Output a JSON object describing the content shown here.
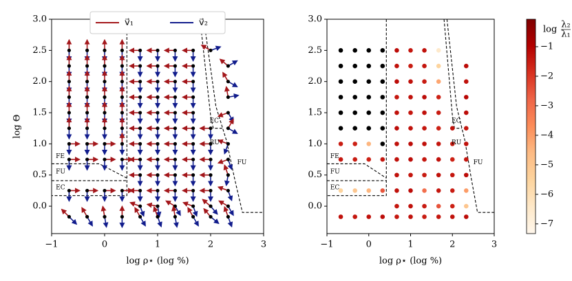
{
  "chart_data": [
    {
      "type": "quiver",
      "xlabel": "log ρ⋆ (log %)",
      "ylabel": "log Θ",
      "xlim": [
        -1,
        3
      ],
      "ylim": [
        -0.44,
        3.0
      ],
      "xticks": [
        {
          "value": -1,
          "label": "−1"
        },
        0,
        1,
        2,
        3
      ],
      "yticks": [
        {
          "value": 0,
          "label": "0.0"
        },
        0.5,
        {
          "value": 1,
          "label": "1.0"
        },
        1.5,
        {
          "value": 2,
          "label": "2.0"
        },
        2.5,
        {
          "value": 3,
          "label": "3.0"
        }
      ],
      "legend": "upper center",
      "series": [
        {
          "name": "v⃗₁",
          "color": "#a3161a"
        },
        {
          "name": "v⃗₂",
          "color": "#111c8c"
        }
      ],
      "annotations": [
        {
          "text": "FE",
          "color": "#3a3ad6"
        },
        {
          "text": "FU",
          "color": "#000000"
        },
        {
          "text": "EC",
          "color": "#1f8a1f"
        },
        {
          "text": "EC",
          "color": "#1f8a1f"
        },
        {
          "text": "RU",
          "color": "#d42020"
        },
        {
          "text": "FU",
          "color": "#000000"
        }
      ],
      "boundaries": [
        {
          "x": [
            0.42,
            0.42,
            -1
          ],
          "y": [
            3.0,
            0.17,
            0.17
          ]
        },
        {
          "x": [
            -1,
            -0.1,
            0.42
          ],
          "y": [
            0.68,
            0.68,
            0.45
          ]
        },
        {
          "x": [
            -1,
            0.42
          ],
          "y": [
            0.41,
            0.41
          ]
        },
        {
          "x": [
            1.8,
            2.0,
            2.05,
            2.22
          ],
          "y": [
            3.0,
            1.45,
            1.25,
            1.25
          ]
        },
        {
          "x": [
            1.87,
            2.1,
            2.3,
            2.45,
            2.6,
            3.0
          ],
          "y": [
            3.0,
            1.6,
            1.05,
            0.45,
            -0.1,
            -0.1
          ]
        }
      ],
      "rows": [
        {
          "y": 2.5,
          "x": [
            -0.67,
            -0.33,
            0,
            0.33,
            0.67,
            1,
            1.33,
            1.67,
            2
          ],
          "v1_angle": [
            90,
            90,
            90,
            90,
            180,
            180,
            180,
            180,
            150
          ],
          "v2_angle": [
            -90,
            -90,
            -90,
            -90,
            -90,
            -90,
            -90,
            -90,
            20
          ]
        },
        {
          "y": 2.25,
          "x": [
            -0.67,
            -0.33,
            0,
            0.33,
            0.67,
            1,
            1.33,
            1.67,
            2.33
          ],
          "v1_angle": [
            90,
            90,
            90,
            90,
            180,
            180,
            180,
            180,
            140
          ],
          "v2_angle": [
            -90,
            -90,
            -90,
            -90,
            -90,
            -90,
            -90,
            -90,
            30
          ]
        },
        {
          "y": 2.0,
          "x": [
            -0.67,
            -0.33,
            0,
            0.33,
            0.67,
            1,
            1.33,
            1.67,
            2.33
          ],
          "v1_angle": [
            90,
            90,
            90,
            90,
            180,
            180,
            180,
            180,
            120
          ],
          "v2_angle": [
            -90,
            -90,
            -90,
            -90,
            -90,
            -90,
            -90,
            -90,
            -30
          ]
        },
        {
          "y": 1.75,
          "x": [
            -0.67,
            -0.33,
            0,
            0.33,
            0.67,
            1,
            1.33,
            1.67,
            2.33
          ],
          "v1_angle": [
            90,
            90,
            90,
            90,
            180,
            180,
            180,
            180,
            100
          ],
          "v2_angle": [
            -90,
            -90,
            -90,
            -90,
            -90,
            -90,
            -90,
            -90,
            10
          ]
        },
        {
          "y": 1.5,
          "x": [
            -0.67,
            -0.33,
            0,
            0.33,
            0.67,
            1,
            1.33,
            1.67,
            2.33
          ],
          "v1_angle": [
            90,
            90,
            90,
            90,
            180,
            180,
            180,
            180,
            200
          ],
          "v2_angle": [
            -90,
            -90,
            -90,
            -90,
            -90,
            -90,
            -90,
            -90,
            -60
          ]
        },
        {
          "y": 1.25,
          "x": [
            -0.67,
            -0.33,
            0,
            0.33,
            0.67,
            1,
            1.33,
            1.67,
            2,
            2.33
          ],
          "v1_angle": [
            90,
            90,
            90,
            90,
            180,
            180,
            180,
            180,
            180,
            60
          ],
          "v2_angle": [
            -90,
            -90,
            -90,
            -90,
            -90,
            -90,
            -90,
            -90,
            -90,
            -30
          ]
        },
        {
          "y": 1.0,
          "x": [
            -0.67,
            -0.33,
            0,
            0.33,
            0.67,
            1,
            1.33,
            1.67,
            2,
            2.33
          ],
          "v1_angle": [
            0,
            0,
            0,
            90,
            180,
            180,
            180,
            180,
            180,
            160
          ],
          "v2_angle": [
            -90,
            -90,
            -90,
            -90,
            -90,
            -90,
            -90,
            -90,
            -90,
            -110
          ]
        },
        {
          "y": 0.75,
          "x": [
            -0.67,
            -0.33,
            0,
            0.33,
            0.67,
            1,
            1.33,
            1.67,
            2,
            2.33
          ],
          "v1_angle": [
            0,
            0,
            0,
            0,
            180,
            180,
            180,
            180,
            180,
            200
          ],
          "v2_angle": [
            -90,
            -90,
            -90,
            -90,
            -90,
            -90,
            -90,
            -90,
            -90,
            -70
          ]
        },
        {
          "y": 0.5,
          "x": [
            0.67,
            1,
            1.33,
            1.67,
            2,
            2.33
          ],
          "v1_angle": [
            180,
            180,
            180,
            180,
            180,
            110
          ],
          "v2_angle": [
            -90,
            -90,
            -90,
            -90,
            -90,
            -100
          ]
        },
        {
          "y": 0.25,
          "x": [
            -0.67,
            -0.33,
            0,
            0.33,
            0.67,
            1,
            1.33,
            1.67,
            2,
            2.33
          ],
          "v1_angle": [
            0,
            0,
            0,
            0,
            180,
            180,
            180,
            180,
            180,
            160
          ],
          "v2_angle": [
            -90,
            -90,
            -90,
            -90,
            -90,
            -90,
            -90,
            -90,
            -90,
            -70
          ]
        },
        {
          "y": 0.0,
          "x": [
            0.67,
            1,
            1.33,
            1.67,
            2,
            2.33
          ],
          "v1_angle": [
            160,
            170,
            150,
            160,
            140,
            150
          ],
          "v2_angle": [
            -70,
            -80,
            -60,
            -70,
            -50,
            -60
          ]
        },
        {
          "y": -0.17,
          "x": [
            -0.67,
            -0.33,
            0,
            0.33,
            0.67,
            1,
            1.33,
            1.67,
            2,
            2.33
          ],
          "v1_angle": [
            135,
            120,
            100,
            90,
            120,
            110,
            100,
            120,
            130,
            110
          ],
          "v2_angle": [
            -45,
            -60,
            -80,
            -90,
            -60,
            -70,
            -80,
            -60,
            -40,
            -70
          ]
        }
      ]
    },
    {
      "type": "scatter",
      "xlabel": "log ρ⋆ (log %)",
      "xlim": [
        -1,
        3
      ],
      "ylim": [
        -0.44,
        3.0
      ],
      "xticks": [
        {
          "value": -1,
          "label": "−1"
        },
        0,
        1,
        2,
        3
      ],
      "yticks": [
        {
          "value": 0,
          "label": "0.0"
        },
        0.5,
        {
          "value": 1,
          "label": "1.0"
        },
        1.5,
        {
          "value": 2,
          "label": "2.0"
        },
        2.5,
        {
          "value": 3,
          "label": "3.0"
        }
      ],
      "missing_color": "#000000",
      "colormap": [
        "#fff7ec",
        "#fee8c8",
        "#fdd49e",
        "#fdbb84",
        "#fc8d59",
        "#ef6548",
        "#d7301f",
        "#b30000",
        "#7f0000"
      ],
      "colorbar": {
        "clim": [
          -7.33,
          -0.07
        ],
        "ticks": [
          {
            "value": -1,
            "label": "−1"
          },
          {
            "value": -2,
            "label": "−2"
          },
          {
            "value": -3,
            "label": "−3"
          },
          {
            "value": -4,
            "label": "−4"
          },
          {
            "value": -5,
            "label": "−5"
          },
          {
            "value": -6,
            "label": "−6"
          },
          {
            "value": -7,
            "label": "−7"
          }
        ],
        "label": {
          "prefix": "log",
          "numerator": "λ₂",
          "denominator": "λ₁"
        }
      },
      "annotations": [
        {
          "text": "FE",
          "color": "#3a3ad6"
        },
        {
          "text": "FU",
          "color": "#000000"
        },
        {
          "text": "EC",
          "color": "#1f8a1f"
        },
        {
          "text": "EC",
          "color": "#1f8a1f"
        },
        {
          "text": "RU",
          "color": "#d42020"
        },
        {
          "text": "FU",
          "color": "#000000"
        }
      ],
      "boundaries": [
        {
          "x": [
            0.42,
            0.42,
            -1
          ],
          "y": [
            3.0,
            0.17,
            0.17
          ]
        },
        {
          "x": [
            -1,
            -0.1,
            0.42
          ],
          "y": [
            0.68,
            0.68,
            0.45
          ]
        },
        {
          "x": [
            -1,
            0.42
          ],
          "y": [
            0.41,
            0.41
          ]
        },
        {
          "x": [
            1.8,
            2.0,
            2.05,
            2.22
          ],
          "y": [
            3.0,
            1.45,
            1.25,
            1.25
          ]
        },
        {
          "x": [
            1.87,
            2.1,
            2.3,
            2.45,
            2.6,
            3.0
          ],
          "y": [
            3.0,
            1.6,
            1.05,
            0.45,
            -0.1,
            -0.1
          ]
        }
      ],
      "rows": [
        {
          "y": 2.5,
          "x": [
            -0.67,
            -0.33,
            0,
            0.33,
            0.67,
            1,
            1.33,
            1.67
          ],
          "values": [
            null,
            null,
            null,
            null,
            -1.2,
            -1.4,
            -1.3,
            -6.5
          ]
        },
        {
          "y": 2.25,
          "x": [
            -0.67,
            -0.33,
            0,
            0.33,
            0.67,
            1,
            1.33,
            1.67,
            2.33
          ],
          "values": [
            null,
            null,
            null,
            null,
            -1.3,
            -1.5,
            -1.4,
            -5.5,
            -1.2
          ]
        },
        {
          "y": 2.0,
          "x": [
            -0.67,
            -0.33,
            0,
            0.33,
            0.67,
            1,
            1.33,
            1.67,
            2.33
          ],
          "values": [
            null,
            null,
            null,
            null,
            -1.2,
            -1.3,
            -1.5,
            -4.2,
            -1.3
          ]
        },
        {
          "y": 1.75,
          "x": [
            -0.67,
            -0.33,
            0,
            0.33,
            0.67,
            1,
            1.33,
            1.67,
            2.33
          ],
          "values": [
            null,
            null,
            null,
            null,
            -1.4,
            -1.3,
            -1.2,
            -1.6,
            -1.1
          ]
        },
        {
          "y": 1.5,
          "x": [
            -0.67,
            -0.33,
            0,
            0.33,
            0.67,
            1,
            1.33,
            1.67,
            2.33
          ],
          "values": [
            null,
            null,
            null,
            null,
            -1.3,
            -1.4,
            -1.3,
            -1.5,
            -1.2
          ]
        },
        {
          "y": 1.25,
          "x": [
            -0.67,
            -0.33,
            0,
            0.33,
            0.67,
            1,
            1.33,
            1.67,
            2,
            2.33
          ],
          "values": [
            null,
            null,
            null,
            null,
            -1.2,
            -1.3,
            -1.4,
            -1.6,
            -1.3,
            -1.4
          ]
        },
        {
          "y": 1.0,
          "x": [
            -0.67,
            -0.33,
            0,
            0.33,
            0.67,
            1,
            1.33,
            1.67,
            2,
            2.33
          ],
          "values": [
            -1.5,
            -1.6,
            -4.5,
            null,
            -1.3,
            -1.2,
            -1.3,
            -1.4,
            -1.5,
            -1.3
          ]
        },
        {
          "y": 0.75,
          "x": [
            -0.67,
            -0.33,
            0,
            0.33,
            0.67,
            1,
            1.33,
            1.67,
            2,
            2.33
          ],
          "values": [
            -1.4,
            -1.5,
            -1.6,
            -1.4,
            -1.3,
            -1.2,
            -1.4,
            -1.3,
            -1.6,
            -1.4
          ]
        },
        {
          "y": 0.5,
          "x": [
            0.67,
            1,
            1.33,
            1.67,
            2,
            2.33
          ],
          "values": [
            -1.3,
            -1.4,
            -1.5,
            -1.3,
            -1.4,
            -1.2
          ]
        },
        {
          "y": 0.25,
          "x": [
            -0.67,
            -0.33,
            0,
            0.33,
            0.67,
            1,
            1.33,
            1.67,
            2,
            2.33
          ],
          "values": [
            -5.5,
            -5,
            -4.5,
            -2.5,
            -1.3,
            -1.2,
            -3,
            -1.4,
            -1.5,
            -4
          ]
        },
        {
          "y": 0.0,
          "x": [
            0.67,
            1,
            1.33,
            1.67,
            2,
            2.33
          ],
          "values": [
            -1.4,
            -1.3,
            -1.5,
            -2.5,
            -1.6,
            -5
          ]
        },
        {
          "y": -0.17,
          "x": [
            -0.67,
            -0.33,
            0,
            0.33,
            0.67,
            1,
            1.33,
            1.67,
            2,
            2.33
          ],
          "values": [
            -1.3,
            -1.4,
            -1.3,
            -1.2,
            -1.4,
            -1.3,
            -1.5,
            -1.4,
            -1.3,
            -1.2
          ]
        }
      ]
    }
  ]
}
